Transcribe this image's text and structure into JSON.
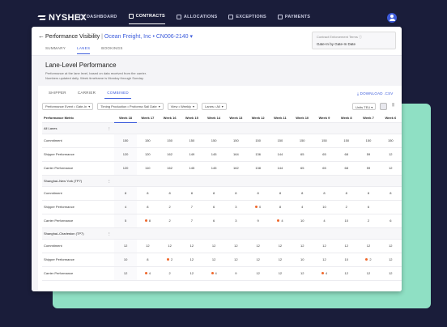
{
  "brand": "NYSHEX",
  "nav": [
    {
      "label": "DASHBOARD",
      "icon": "home-icon"
    },
    {
      "label": "CONTRACTS",
      "icon": "chart-icon",
      "active": true
    },
    {
      "label": "ALLOCATIONS",
      "icon": "grid-icon"
    },
    {
      "label": "EXCEPTIONS",
      "icon": "alert-icon"
    },
    {
      "label": "PAYMENTS",
      "icon": "card-icon"
    }
  ],
  "header": {
    "title": "Performance Visibility",
    "customer": "Ocean Freight, Inc",
    "contract": "CN006-2140",
    "tabs": [
      "SUMMARY",
      "LANES",
      "BOOKINGS"
    ],
    "active_tab": "LANES",
    "enforcement_label": "Contract Enforcement Terms",
    "enforcement_value": "Gate-In by Gate-In Date"
  },
  "section": {
    "heading": "Lane-Level Performance",
    "desc1": "Performance at the lane level, based on data received from the carrier.",
    "desc2": "Numbers updated daily. Week timeframe is Monday through Sunday."
  },
  "card": {
    "tabs": [
      "SHIPPER",
      "CARRIER",
      "COMBINED"
    ],
    "active_tab": "COMBINED",
    "download": "DOWNLOAD .CSV",
    "filters": [
      "Performance Event • Gate-In",
      "Timing Production • Proforma Sail Date",
      "View • Weekly",
      "Lanes • All"
    ],
    "units": "Units TEU"
  },
  "table": {
    "metric_header": "Performance Metric",
    "weeks": [
      "Week 18",
      "Week 17",
      "Week 16",
      "Week 15",
      "Week 14",
      "Week 13",
      "Week 12",
      "Week 11",
      "Week 10",
      "Week 9",
      "Week 8",
      "Week 7",
      "Week 6"
    ],
    "groups": [
      {
        "name": "All Lanes",
        "rows": [
          {
            "label": "Commitment",
            "values": [
              "150",
              "150",
              "150",
              "150",
              "150",
              "150",
              "150",
              "150",
              "150",
              "150",
              "150",
              "150",
              "150"
            ],
            "dots": []
          },
          {
            "label": "Shipper Performance",
            "values": [
              "120",
              "120",
              "162",
              "149",
              "145",
              "164",
              "136",
              "144",
              "65",
              "65",
              "68",
              "59",
              "12"
            ],
            "dots": []
          },
          {
            "label": "Carrier Performance",
            "values": [
              "120",
              "110",
              "162",
              "145",
              "145",
              "162",
              "138",
              "144",
              "65",
              "65",
              "68",
              "59",
              "12"
            ],
            "dots": []
          }
        ]
      },
      {
        "name": "Shanghai–New York (TP7)",
        "rows": [
          {
            "label": "Commitment",
            "values": [
              "8",
              "8",
              "8",
              "8",
              "8",
              "8",
              "8",
              "8",
              "8",
              "8",
              "8",
              "8",
              "8"
            ],
            "dots": []
          },
          {
            "label": "Shipper Performance",
            "values": [
              "4",
              "8",
              "2",
              "7",
              "6",
              "3",
              "0",
              "8",
              "4",
              "10",
              "2",
              "6",
              ""
            ],
            "dots": [
              6
            ]
          },
          {
            "label": "Carrier Performance",
            "values": [
              "5",
              "8",
              "2",
              "7",
              "6",
              "3",
              "9",
              "4",
              "10",
              "4",
              "10",
              "2",
              "6"
            ],
            "dots": [
              1,
              7
            ]
          }
        ]
      },
      {
        "name": "Shanghai–Charleston (TP7)",
        "rows": [
          {
            "label": "Commitment",
            "values": [
              "12",
              "12",
              "12",
              "12",
              "12",
              "12",
              "12",
              "12",
              "12",
              "12",
              "12",
              "12",
              "12"
            ],
            "dots": []
          },
          {
            "label": "Shipper Performance",
            "values": [
              "10",
              "8",
              "2",
              "12",
              "12",
              "12",
              "12",
              "12",
              "10",
              "12",
              "10",
              "2",
              "12"
            ],
            "dots": [
              2,
              11
            ]
          },
          {
            "label": "Carrier Performance",
            "values": [
              "12",
              "4",
              "2",
              "12",
              "4",
              "9",
              "12",
              "12",
              "12",
              "4",
              "12",
              "12",
              "12"
            ],
            "dots": [
              1,
              4,
              9
            ]
          }
        ]
      }
    ]
  },
  "colors": {
    "accent": "#3b5bdb",
    "dot": "#f0672a",
    "navy": "#1a1d3a",
    "teal": "#8fe0c4"
  }
}
